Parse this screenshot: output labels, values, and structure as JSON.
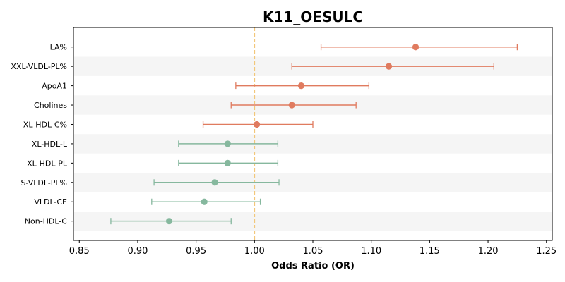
{
  "chart_data": {
    "type": "forest",
    "title": "K11_OESULC",
    "xlabel": "Odds Ratio (OR)",
    "ylabel": "",
    "xlim": [
      0.845,
      1.255
    ],
    "xticks": [
      0.85,
      0.9,
      0.95,
      1.0,
      1.05,
      1.1,
      1.15,
      1.2,
      1.25
    ],
    "xtick_labels": [
      "0.85",
      "0.90",
      "0.95",
      "1.00",
      "1.05",
      "1.10",
      "1.15",
      "1.20",
      "1.25"
    ],
    "reference_line": 1.0,
    "grid": false,
    "row_shading": "alternating",
    "colors": {
      "positive": "#E07B5F",
      "negative": "#86B89E",
      "reference": "#F2C77A",
      "band": "#F5F5F5"
    },
    "rows": [
      {
        "label": "LA%",
        "or": 1.138,
        "lower": 1.057,
        "upper": 1.225
      },
      {
        "label": "XXL-VLDL-PL%",
        "or": 1.115,
        "lower": 1.032,
        "upper": 1.205
      },
      {
        "label": "ApoA1",
        "or": 1.04,
        "lower": 0.984,
        "upper": 1.098
      },
      {
        "label": "Cholines",
        "or": 1.032,
        "lower": 0.98,
        "upper": 1.087
      },
      {
        "label": "XL-HDL-C%",
        "or": 1.002,
        "lower": 0.956,
        "upper": 1.05
      },
      {
        "label": "XL-HDL-L",
        "or": 0.977,
        "lower": 0.935,
        "upper": 1.02
      },
      {
        "label": "XL-HDL-PL",
        "or": 0.977,
        "lower": 0.935,
        "upper": 1.02
      },
      {
        "label": "S-VLDL-PL%",
        "or": 0.966,
        "lower": 0.914,
        "upper": 1.021
      },
      {
        "label": "VLDL-CE",
        "or": 0.957,
        "lower": 0.912,
        "upper": 1.005
      },
      {
        "label": "Non-HDL-C",
        "or": 0.927,
        "lower": 0.877,
        "upper": 0.98
      }
    ]
  }
}
